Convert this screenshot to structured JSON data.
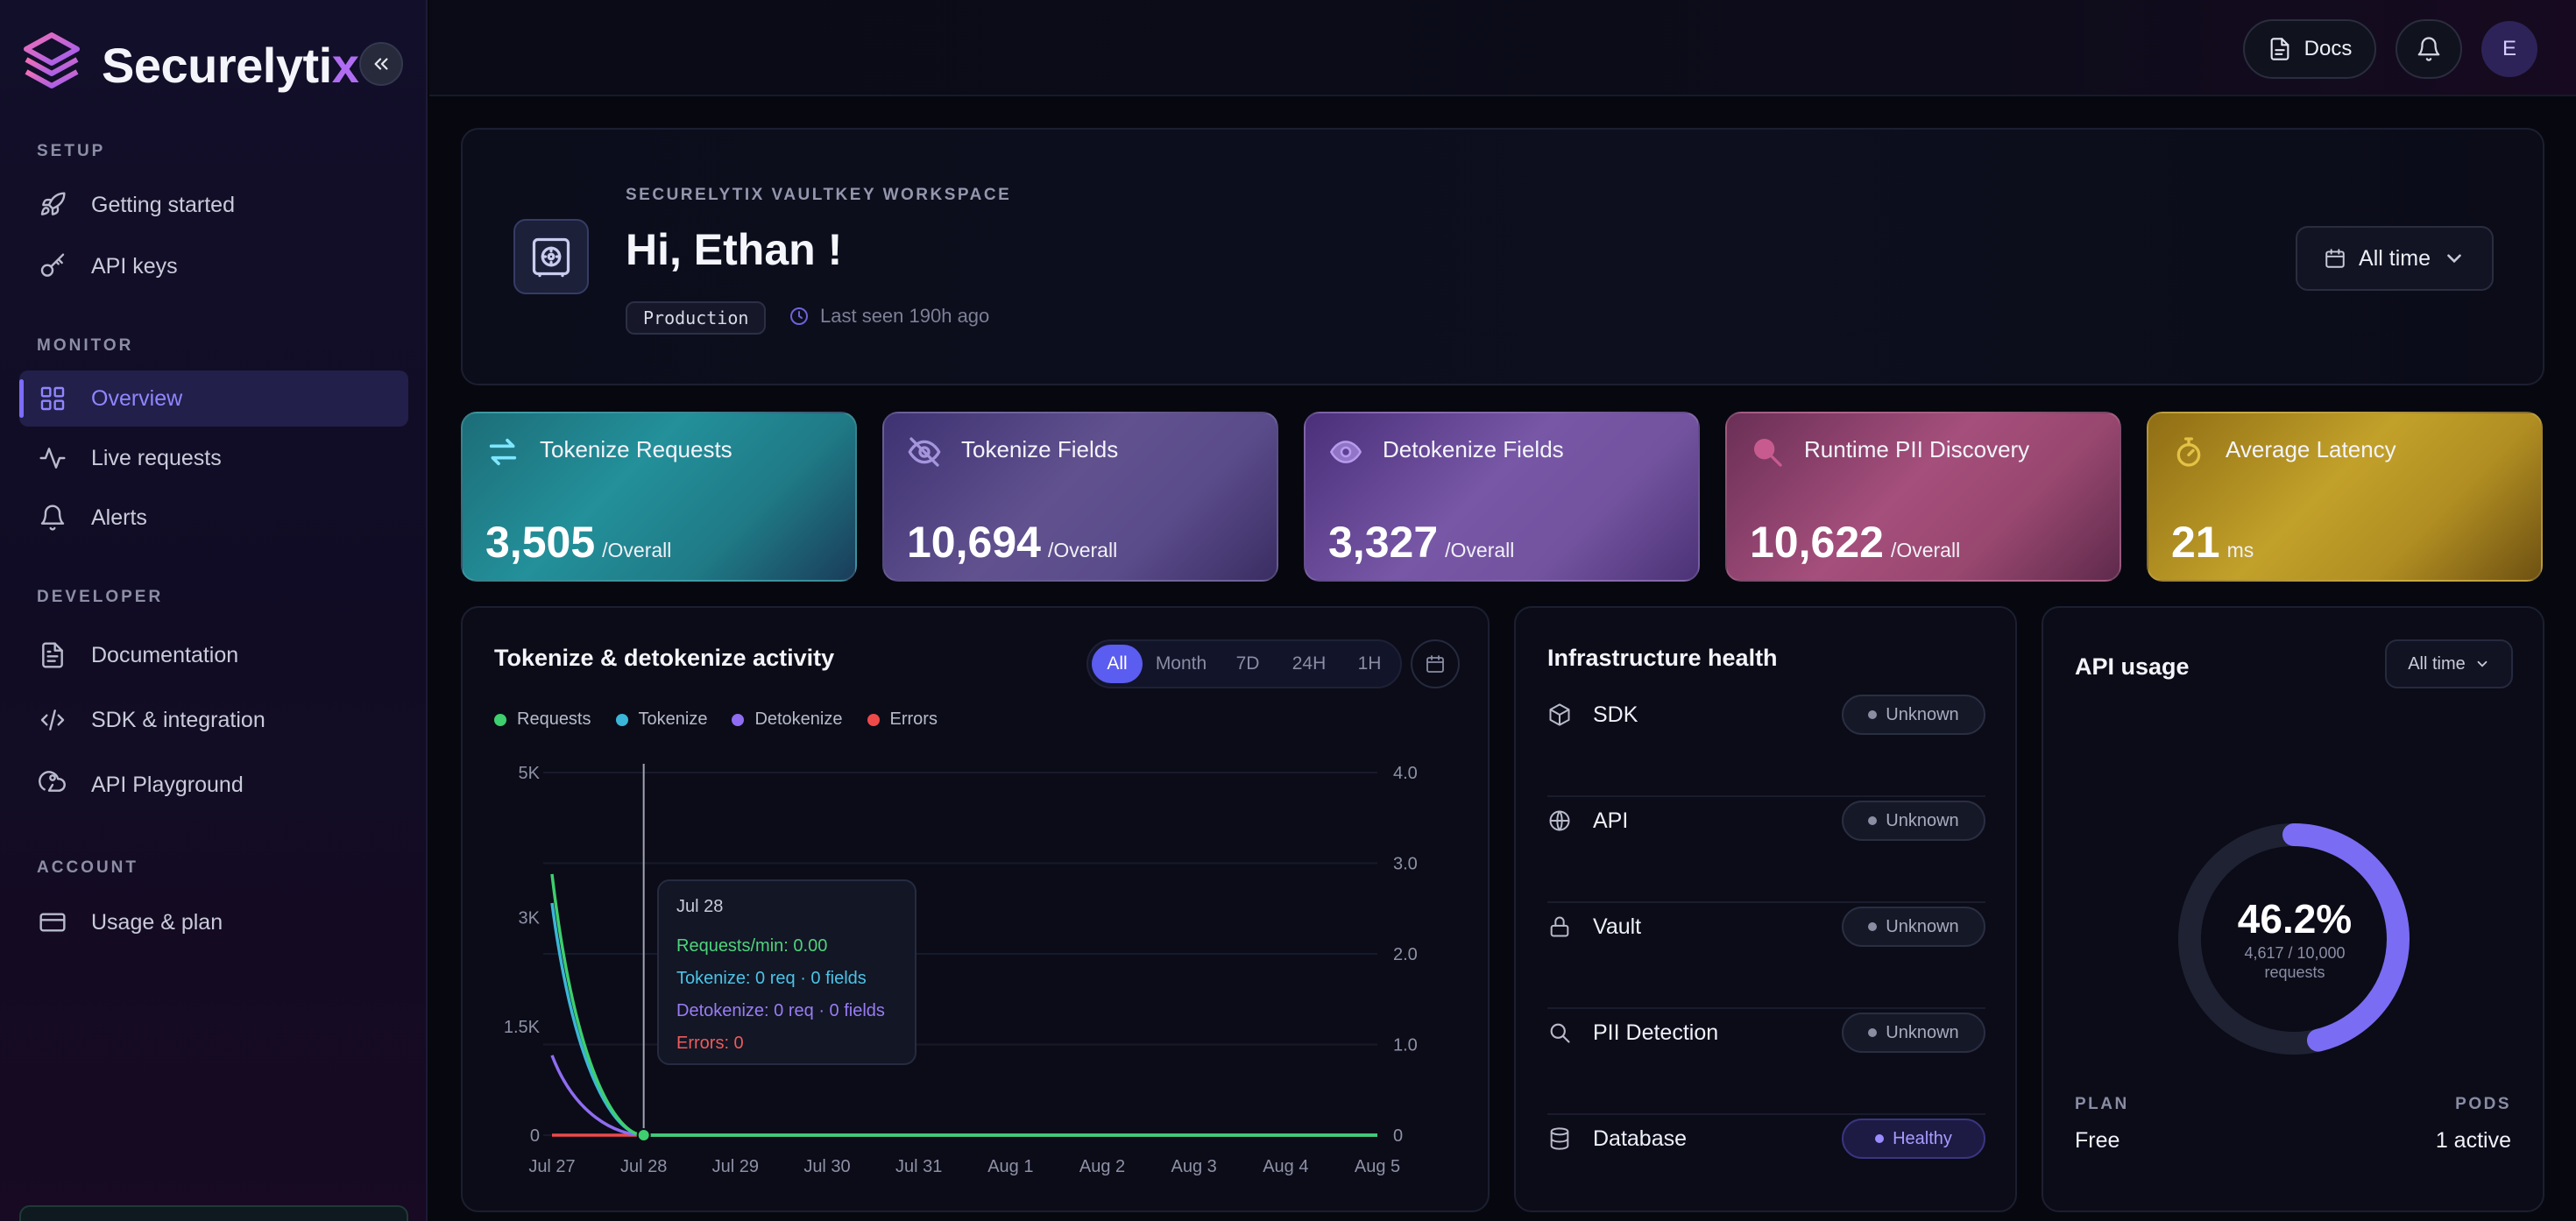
{
  "brand": {
    "name": "Securelyti",
    "name_accent": "x"
  },
  "sidebar": {
    "sections": [
      {
        "label": "SETUP",
        "items": [
          {
            "label": "Getting started",
            "icon": "rocket-icon"
          },
          {
            "label": "API keys",
            "icon": "key-icon"
          }
        ]
      },
      {
        "label": "MONITOR",
        "items": [
          {
            "label": "Overview",
            "icon": "grid-icon",
            "active": true
          },
          {
            "label": "Live requests",
            "icon": "activity-icon"
          },
          {
            "label": "Alerts",
            "icon": "bell-icon"
          }
        ]
      },
      {
        "label": "DEVELOPER",
        "items": [
          {
            "label": "Documentation",
            "icon": "document-icon"
          },
          {
            "label": "SDK & integration",
            "icon": "code-icon"
          },
          {
            "label": "API Playground",
            "icon": "webhook-icon"
          }
        ]
      },
      {
        "label": "ACCOUNT",
        "items": [
          {
            "label": "Usage & plan",
            "icon": "credit-card-icon"
          }
        ]
      }
    ]
  },
  "topbar": {
    "docs_label": "Docs",
    "avatar_initial": "E"
  },
  "welcome": {
    "workspace_label": "SECURELYTIX VAULTKEY WORKSPACE",
    "greeting": "Hi, Ethan !",
    "environment": "Production",
    "last_seen": "Last seen 190h ago",
    "range_label": "All time"
  },
  "stats": [
    {
      "title": "Tokenize Requests",
      "value": "3,505",
      "unit": "/Overall",
      "icon": "swap-arrows-icon"
    },
    {
      "title": "Tokenize Fields",
      "value": "10,694",
      "unit": "/Overall",
      "icon": "eye-off-icon"
    },
    {
      "title": "Detokenize Fields",
      "value": "3,327",
      "unit": "/Overall",
      "icon": "eye-icon"
    },
    {
      "title": "Runtime PII Discovery",
      "value": "10,622",
      "unit": "/Overall",
      "icon": "search-icon"
    },
    {
      "title": "Average Latency",
      "value": "21",
      "unit": "ms",
      "icon": "stopwatch-icon"
    }
  ],
  "activity": {
    "title": "Tokenize & detokenize activity",
    "ranges": [
      "All",
      "Month",
      "7D",
      "24H",
      "1H"
    ],
    "active_range": "All",
    "tooltip": {
      "date": "Jul 28",
      "requests": "Requests/min: 0.00",
      "tokenize": "Tokenize: 0 req · 0 fields",
      "detokenize": "Detokenize: 0 req · 0 fields",
      "errors": "Errors: 0"
    }
  },
  "chart_data": {
    "type": "line",
    "categories": [
      "Jul 27",
      "Jul 28",
      "Jul 29",
      "Jul 30",
      "Jul 31",
      "Aug 1",
      "Aug 2",
      "Aug 3",
      "Aug 4",
      "Aug 5"
    ],
    "y_ticks_left": [
      "0",
      "1.5K",
      "3K",
      "5K"
    ],
    "y_ticks_right": [
      "0",
      "1.0",
      "2.0",
      "3.0",
      "4.0"
    ],
    "ylim": [
      0,
      5000
    ],
    "y2lim": [
      0,
      4
    ],
    "grid": true,
    "legend_position": "top-left",
    "series": [
      {
        "name": "Requests",
        "color": "#3ecf6e",
        "values": [
          3600,
          0,
          0,
          0,
          0,
          0,
          0,
          0,
          0,
          0
        ]
      },
      {
        "name": "Tokenize",
        "color": "#3bb6d8",
        "values": [
          3200,
          0,
          0,
          0,
          0,
          0,
          0,
          0,
          0,
          0
        ]
      },
      {
        "name": "Detokenize",
        "color": "#8f6cf0",
        "values": [
          1100,
          0,
          0,
          0,
          0,
          0,
          0,
          0,
          0,
          0
        ]
      },
      {
        "name": "Errors",
        "color": "#ef4a4a",
        "values": [
          0,
          0,
          0,
          0,
          0,
          0,
          0,
          0,
          0,
          0
        ]
      }
    ]
  },
  "infra": {
    "title": "Infrastructure health",
    "items": [
      {
        "name": "SDK",
        "status": "Unknown",
        "icon": "cube-icon"
      },
      {
        "name": "API",
        "status": "Unknown",
        "icon": "globe-icon"
      },
      {
        "name": "Vault",
        "status": "Unknown",
        "icon": "lock-icon"
      },
      {
        "name": "PII Detection",
        "status": "Unknown",
        "icon": "search-icon"
      },
      {
        "name": "Database",
        "status": "Healthy",
        "icon": "database-icon"
      }
    ]
  },
  "usage": {
    "title": "API usage",
    "range_label": "All time",
    "percent": "46.2%",
    "percent_value": 46.2,
    "count": "4,617 / 10,000",
    "count_unit": "requests",
    "plan_label": "PLAN",
    "plan_value": "Free",
    "pods_label": "PODS",
    "pods_value": "1 active"
  },
  "colors": {
    "accent": "#7c6cff",
    "healthy": "#9a8cff"
  }
}
